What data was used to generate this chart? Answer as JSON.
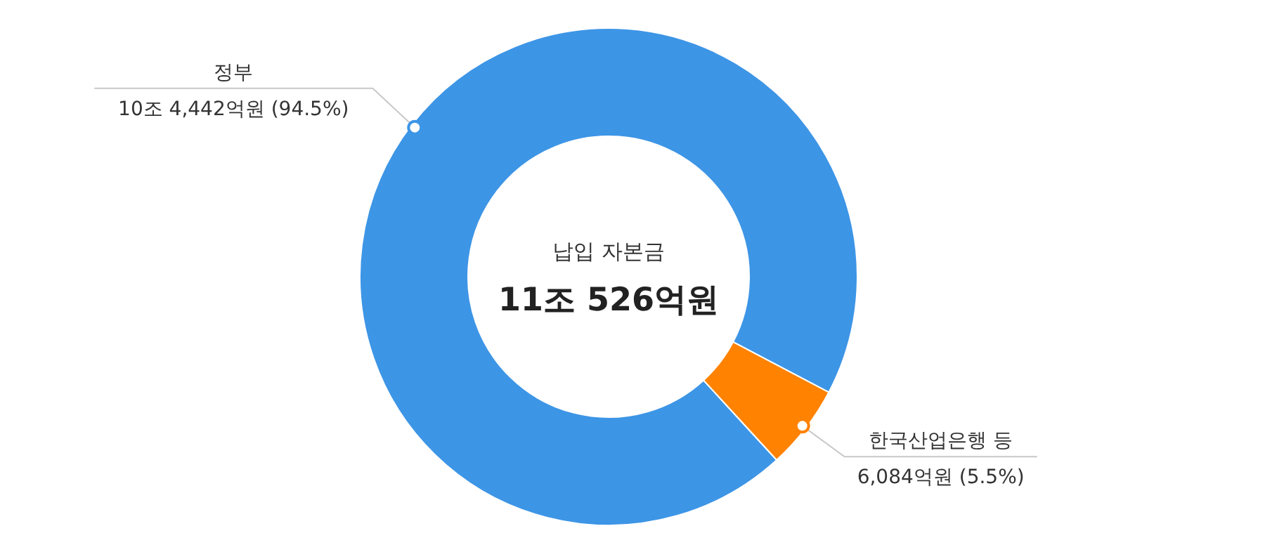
{
  "chart_data": {
    "type": "donut",
    "title": "납입 자본금",
    "subtitle": "11조 526억원",
    "categories": [
      "정부",
      "한국산업은행 등"
    ],
    "values": [
      94.5,
      5.5
    ],
    "value_labels": [
      "10조 4,442억원 (94.5%)",
      "6,084억원 (5.5%)"
    ],
    "colors": [
      "#3d95e6",
      "#ff8200"
    ]
  }
}
